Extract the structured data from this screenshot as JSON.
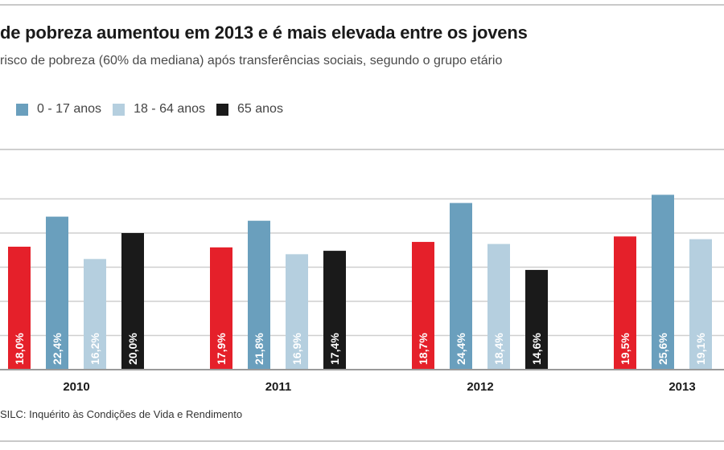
{
  "header": {
    "title": "de pobreza aumentou em 2013 e é mais elevada entre os jovens",
    "subtitle": "risco de pobreza (60% da mediana) após transferências sociais, segundo o grupo etário"
  },
  "legend": [
    {
      "label": "0 - 17 anos",
      "color": "#6a9fbd"
    },
    {
      "label": "18 - 64 anos",
      "color": "#b5cfdf"
    },
    {
      "label": "65 anos",
      "color": "#1a1a1a"
    }
  ],
  "colors": {
    "total": "#e5202a",
    "age_0_17": "#6a9fbd",
    "age_18_64": "#b5cfdf",
    "age_65": "#1a1a1a",
    "grid": "#cfcfcf",
    "baseline": "#9a9a9a"
  },
  "chart_data": {
    "type": "bar",
    "categories": [
      "2010",
      "2011",
      "2012",
      "2013"
    ],
    "series": [
      {
        "values": [
          18.0,
          17.9,
          18.7,
          19.5
        ],
        "labels": [
          "18,0%",
          "17,9%",
          "18,7%",
          "19,5%"
        ]
      },
      {
        "name": "0 - 17 anos",
        "values": [
          22.4,
          21.8,
          24.4,
          25.6
        ],
        "labels": [
          "22,4%",
          "21,8%",
          "24,4%",
          "25,6%"
        ]
      },
      {
        "name": "18 - 64 anos",
        "values": [
          16.2,
          16.9,
          18.4,
          19.1
        ],
        "labels": [
          "16,2%",
          "16,9%",
          "18,4%",
          "19,1%"
        ]
      },
      {
        "name": "65 anos",
        "values": [
          20.0,
          17.4,
          14.6,
          null
        ],
        "labels": [
          "20,0%",
          "17,4%",
          "14,6%",
          ""
        ]
      }
    ],
    "ylim": [
      0,
      25
    ],
    "yticks": [
      0,
      5,
      10,
      15,
      20,
      25
    ],
    "grid": true,
    "legend_position": "top-left"
  },
  "source": "SILC: Inquérito às Condições de Vida e Rendimento"
}
